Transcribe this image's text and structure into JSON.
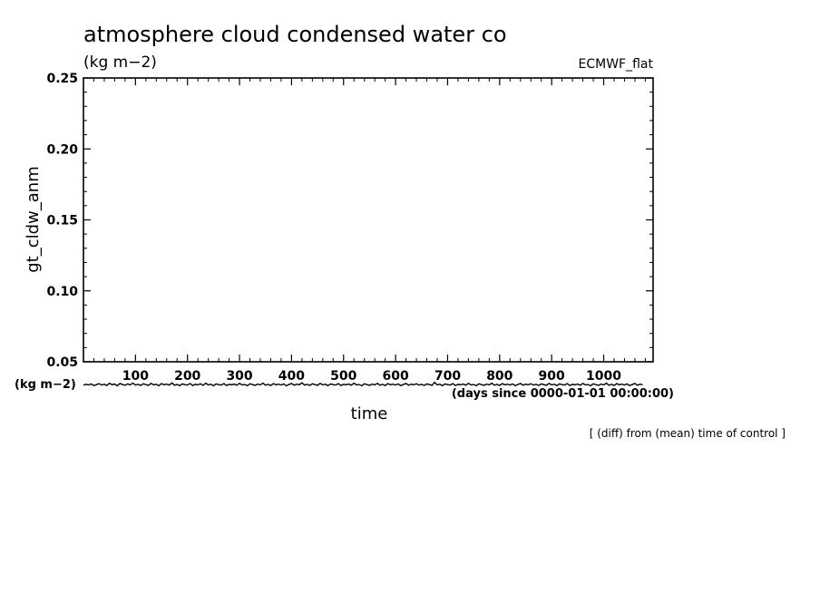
{
  "chart_data": {
    "type": "line",
    "title": "atmosphere cloud condensed water co",
    "units": "(kg m−2)",
    "dataset_label": "ECMWF_flat",
    "ylabel": "gt_cldw_anm",
    "yunit_label": "(kg m−2)",
    "xlabel": "time",
    "xunit_label": "(days since 0000-01-01 00:00:00)",
    "note": "[ (diff) from (mean) time of control ]",
    "xlim": [
      0,
      1095
    ],
    "ylim": [
      0.05,
      0.25
    ],
    "x_ticks": [
      100,
      200,
      300,
      400,
      500,
      600,
      700,
      800,
      900,
      1000
    ],
    "y_ticks": [
      "0.05",
      "0.10",
      "0.15",
      "0.20",
      "0.25"
    ],
    "grid": false,
    "line_color": "#000000",
    "series": [
      {
        "x_start": 0,
        "x_step": 5,
        "values": [
          0.0335,
          0.0341,
          0.0337,
          0.0344,
          0.0332,
          0.0339,
          0.0346,
          0.0336,
          0.0342,
          0.0333,
          0.0349,
          0.0338,
          0.0343,
          0.0331,
          0.0347,
          0.034,
          0.0335,
          0.0344,
          0.0337,
          0.035,
          0.0336,
          0.0341,
          0.0333,
          0.0345,
          0.0339,
          0.0334,
          0.0348,
          0.0337,
          0.0342,
          0.0331,
          0.0346,
          0.0338,
          0.0343,
          0.0336,
          0.0351,
          0.0335,
          0.034,
          0.0332,
          0.0344,
          0.0339,
          0.0336,
          0.0347,
          0.0333,
          0.0341,
          0.0338,
          0.0345,
          0.0334,
          0.0349,
          0.0337,
          0.0342,
          0.0331,
          0.0344,
          0.0339,
          0.0336,
          0.0346,
          0.0333,
          0.0341,
          0.0338,
          0.0343,
          0.0335,
          0.0348,
          0.0337,
          0.034,
          0.0332,
          0.0345,
          0.0339,
          0.0334,
          0.0343,
          0.0337,
          0.035,
          0.0335,
          0.0341,
          0.0333,
          0.0346,
          0.0338,
          0.0342,
          0.0336,
          0.0344,
          0.0331,
          0.034,
          0.0347,
          0.0335,
          0.0342,
          0.0338,
          0.0352,
          0.0336,
          0.0341,
          0.0333,
          0.0345,
          0.0339,
          0.0334,
          0.0348,
          0.0337,
          0.0342,
          0.0332,
          0.0344,
          0.0339,
          0.0336,
          0.0346,
          0.0333,
          0.0341,
          0.0338,
          0.0343,
          0.0335,
          0.0349,
          0.0337,
          0.034,
          0.0331,
          0.0345,
          0.0339,
          0.0334,
          0.0343,
          0.0337,
          0.0348,
          0.0335,
          0.0341,
          0.0333,
          0.0346,
          0.0338,
          0.0342,
          0.0336,
          0.0344,
          0.0332,
          0.034,
          0.0347,
          0.0335,
          0.0342,
          0.0338,
          0.0345,
          0.0336,
          0.0341,
          0.0333,
          0.0344,
          0.0339,
          0.0334,
          0.0355,
          0.0337,
          0.0342,
          0.0332,
          0.0344,
          0.0339,
          0.0336,
          0.0346,
          0.0333,
          0.0341,
          0.0338,
          0.0343,
          0.0335,
          0.0348,
          0.0337,
          0.034,
          0.0331,
          0.0345,
          0.0339,
          0.0334,
          0.0343,
          0.0337,
          0.0349,
          0.0335,
          0.0341,
          0.0333,
          0.0346,
          0.0338,
          0.0342,
          0.0336,
          0.0344,
          0.0332,
          0.034,
          0.0347,
          0.0335,
          0.0342,
          0.0338,
          0.0345,
          0.0336,
          0.0341,
          0.0333,
          0.0344,
          0.0339,
          0.0334,
          0.0348,
          0.0337,
          0.0342,
          0.0332,
          0.0344,
          0.0339,
          0.0336,
          0.0346,
          0.0333,
          0.0341,
          0.0338,
          0.0343,
          0.0335,
          0.0347,
          0.0337,
          0.034,
          0.0331,
          0.0345,
          0.0339,
          0.0334,
          0.0343,
          0.0337,
          0.0349,
          0.0335,
          0.0341,
          0.0333,
          0.0346,
          0.0338,
          0.0342,
          0.0336,
          0.0344,
          0.0332,
          0.034,
          0.0347,
          0.0335,
          0.0342,
          0.0338
        ]
      }
    ]
  }
}
